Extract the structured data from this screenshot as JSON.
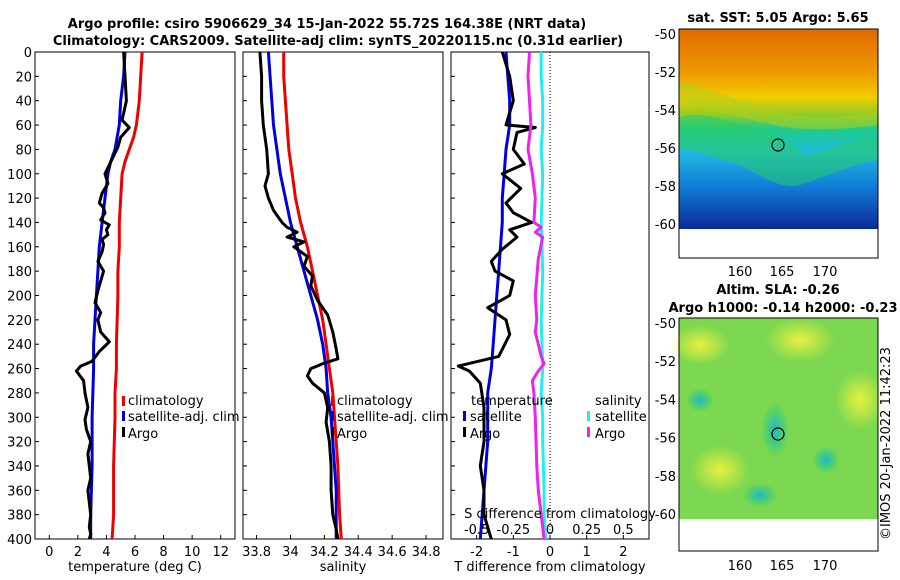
{
  "title": {
    "line1": "Argo profile: csiro 5906629_34 15-Jan-2022 55.72S 164.38E (NRT data)",
    "line2": "Climatology: CARS2009. Satellite-adj clim: synTS_20220115.nc (0.31d earlier)"
  },
  "chart_data": [
    {
      "type": "line",
      "id": "temperature",
      "xlabel": "temperature (deg C)",
      "ylabel": "",
      "xlim": [
        -1,
        13
      ],
      "ylim": [
        400,
        0
      ],
      "xticks": [
        "0",
        "2",
        "4",
        "6",
        "8",
        "10",
        "12"
      ],
      "yticks": [
        "0",
        "20",
        "40",
        "60",
        "80",
        "100",
        "120",
        "140",
        "160",
        "180",
        "200",
        "220",
        "240",
        "260",
        "280",
        "300",
        "320",
        "340",
        "360",
        "380",
        "400"
      ],
      "legend": [
        "climatology",
        "satellite-adj. clim",
        "Argo"
      ],
      "series": [
        {
          "name": "climatology",
          "color": "#ee0000",
          "x": [
            6.5,
            6.4,
            6.3,
            6.1,
            5.9,
            5.6,
            5.3,
            5.1,
            5.0,
            4.9,
            4.9,
            4.8,
            4.8,
            4.7,
            4.7,
            4.6,
            4.6,
            4.5,
            4.5,
            4.4
          ],
          "depth": [
            0,
            20,
            40,
            60,
            70,
            80,
            90,
            100,
            120,
            140,
            160,
            180,
            200,
            240,
            260,
            280,
            300,
            340,
            380,
            400
          ]
        },
        {
          "name": "satellite-adj. clim",
          "color": "#0000dd",
          "x": [
            5.3,
            5.2,
            5.0,
            4.9,
            4.6,
            4.3,
            4.1,
            3.9,
            3.7,
            3.5,
            3.4,
            3.3,
            3.2,
            3.1,
            3.1,
            3.0,
            3.0,
            2.9,
            2.9
          ],
          "depth": [
            0,
            20,
            40,
            60,
            80,
            90,
            100,
            120,
            140,
            160,
            180,
            200,
            220,
            240,
            260,
            300,
            340,
            380,
            400
          ]
        },
        {
          "name": "Argo",
          "color": "#000000",
          "x": [
            5.2,
            5.3,
            5.4,
            5.1,
            5.6,
            5.0,
            4.8,
            4.4,
            3.9,
            4.1,
            3.7,
            3.5,
            3.8,
            3.9,
            3.6,
            4.2,
            4.0,
            4.1,
            3.7,
            3.8,
            3.7,
            3.4,
            3.8,
            3.6,
            3.4,
            3.2,
            3.6,
            3.4,
            3.6,
            4.2,
            3.5,
            3.0,
            2.2,
            1.9,
            2.4,
            2.5,
            2.7,
            2.5,
            2.6,
            2.9,
            2.7,
            2.8,
            2.9,
            2.7,
            2.8,
            2.9,
            2.8,
            2.9,
            2.8
          ],
          "depth": [
            0,
            20,
            40,
            56,
            62,
            70,
            78,
            88,
            100,
            108,
            116,
            124,
            128,
            132,
            138,
            142,
            146,
            150,
            154,
            158,
            164,
            172,
            180,
            188,
            196,
            206,
            214,
            220,
            230,
            238,
            246,
            254,
            258,
            262,
            270,
            280,
            292,
            302,
            310,
            320,
            330,
            340,
            350,
            360,
            370,
            380,
            390,
            396,
            400
          ]
        }
      ]
    },
    {
      "type": "line",
      "id": "salinity",
      "xlabel": "salinity",
      "ylabel": "",
      "xlim": [
        33.72,
        34.9
      ],
      "ylim": [
        400,
        0
      ],
      "xticks": [
        "33.8",
        "34",
        "34.2",
        "34.4",
        "34.6",
        "34.8"
      ],
      "legend": [
        "climatology",
        "satellite-adj. clim",
        "Argo"
      ],
      "series": [
        {
          "name": "climatology",
          "color": "#ee0000",
          "x": [
            33.96,
            33.96,
            33.97,
            33.98,
            33.99,
            34.01,
            34.03,
            34.06,
            34.1,
            34.13,
            34.16,
            34.19,
            34.21,
            34.23,
            34.25,
            34.26,
            34.27,
            34.28,
            34.29,
            34.3
          ],
          "depth": [
            0,
            20,
            40,
            60,
            80,
            100,
            120,
            140,
            160,
            180,
            200,
            220,
            240,
            260,
            280,
            300,
            320,
            340,
            380,
            400
          ]
        },
        {
          "name": "satellite-adj. clim",
          "color": "#0000dd",
          "x": [
            33.87,
            33.88,
            33.89,
            33.9,
            33.92,
            33.94,
            33.97,
            34.0,
            34.04,
            34.08,
            34.12,
            34.16,
            34.19,
            34.21,
            34.22,
            34.24,
            34.25,
            34.27,
            34.27
          ],
          "depth": [
            0,
            20,
            40,
            60,
            80,
            100,
            120,
            140,
            160,
            180,
            200,
            220,
            240,
            260,
            280,
            300,
            320,
            360,
            400
          ]
        },
        {
          "name": "Argo",
          "color": "#000000",
          "x": [
            33.82,
            33.83,
            33.83,
            33.84,
            33.86,
            33.87,
            33.85,
            33.87,
            33.9,
            33.93,
            33.95,
            33.98,
            34.04,
            33.98,
            34.08,
            34.02,
            34.1,
            34.08,
            34.13,
            34.12,
            34.16,
            34.22,
            34.25,
            34.27,
            34.28,
            34.19,
            34.12,
            34.1,
            34.13,
            34.2,
            34.22,
            34.21,
            34.23,
            34.24,
            34.24,
            34.25,
            34.27,
            34.28
          ],
          "depth": [
            0,
            20,
            40,
            60,
            80,
            100,
            110,
            120,
            130,
            136,
            140,
            144,
            148,
            152,
            156,
            160,
            168,
            176,
            184,
            192,
            204,
            216,
            230,
            244,
            252,
            256,
            260,
            266,
            272,
            280,
            292,
            304,
            320,
            340,
            360,
            380,
            392,
            400
          ]
        }
      ]
    },
    {
      "type": "line",
      "id": "difference",
      "xlabel": "T difference from climatology",
      "xlabel_top": "S difference from climatology",
      "xlim": [
        -2.7,
        2.7
      ],
      "ylim": [
        400,
        0
      ],
      "xticks": [
        "-2",
        "-1",
        "0",
        "1",
        "2"
      ],
      "xticks_s": [
        "-0.5",
        "-0.25",
        "0",
        "0.25",
        "0.5"
      ],
      "legend_t_title": "temperature",
      "legend_t": [
        "satellite",
        "Argo"
      ],
      "legend_s_title": "salinity",
      "legend_s": [
        "satellite",
        "Argo"
      ],
      "series": [
        {
          "name": "T satellite",
          "color": "#0000dd",
          "x": [
            -1.2,
            -1.15,
            -1.1,
            -1.1,
            -1.2,
            -1.25,
            -1.3,
            -1.3,
            -1.35,
            -1.4,
            -1.45,
            -1.55,
            -1.6,
            -1.7,
            -1.7,
            -1.8,
            -1.9
          ],
          "depth": [
            0,
            20,
            40,
            60,
            80,
            100,
            120,
            140,
            160,
            180,
            200,
            240,
            260,
            280,
            320,
            360,
            400
          ]
        },
        {
          "name": "T Argo",
          "color": "#000000",
          "x": [
            -1.3,
            -1.1,
            -1.0,
            -1.2,
            -0.4,
            -0.9,
            -1.0,
            -0.7,
            -1.3,
            -0.8,
            -1.2,
            -1.0,
            -0.5,
            -1.1,
            -0.9,
            -1.3,
            -1.6,
            -1.5,
            -1.0,
            -1.1,
            -1.7,
            -1.2,
            -1.1,
            -1.4,
            -2.5,
            -2.2,
            -1.9,
            -1.8,
            -1.8,
            -1.9,
            -1.8,
            -1.8,
            -1.6
          ],
          "depth": [
            0,
            20,
            40,
            60,
            62,
            66,
            80,
            92,
            100,
            112,
            124,
            132,
            140,
            146,
            152,
            162,
            172,
            180,
            188,
            200,
            210,
            220,
            232,
            250,
            258,
            262,
            272,
            292,
            320,
            340,
            360,
            380,
            400
          ]
        },
        {
          "name": "S satellite",
          "color": "#22eeee",
          "x": [
            -0.06,
            -0.06,
            -0.05,
            -0.05,
            -0.06,
            -0.05,
            -0.06,
            -0.05,
            -0.06,
            -0.05,
            -0.06,
            -0.05,
            -0.05,
            -0.04,
            -0.04,
            -0.03
          ],
          "depth": [
            0,
            20,
            40,
            60,
            80,
            100,
            140,
            180,
            220,
            260,
            280,
            300,
            320,
            360,
            380,
            400
          ]
        },
        {
          "name": "S Argo",
          "color": "#ee22ee",
          "x": [
            -0.14,
            -0.15,
            -0.14,
            -0.13,
            -0.15,
            -0.12,
            -0.1,
            -0.11,
            -0.06,
            -0.1,
            -0.05,
            -0.08,
            -0.1,
            -0.09,
            -0.1,
            -0.08,
            -0.06,
            -0.04,
            -0.08,
            -0.12,
            -0.11,
            -0.1,
            -0.09,
            -0.08,
            -0.06,
            -0.04
          ],
          "depth": [
            0,
            20,
            40,
            60,
            80,
            100,
            120,
            140,
            144,
            148,
            152,
            170,
            200,
            220,
            230,
            240,
            250,
            256,
            262,
            270,
            280,
            300,
            340,
            360,
            380,
            400
          ]
        }
      ]
    }
  ],
  "maps": {
    "sst": {
      "title": "sat. SST: 5.05 Argo: 5.65",
      "yticks": [
        "-50",
        "-52",
        "-54",
        "-56",
        "-58",
        "-60"
      ],
      "xticks": [
        "160",
        "165",
        "170"
      ]
    },
    "sla": {
      "title_line1": "Altim. SLA: -0.26",
      "title_line2": "Argo h1000: -0.14 h2000: -0.23",
      "yticks": [
        "-50",
        "-52",
        "-54",
        "-56",
        "-58",
        "-60"
      ],
      "xticks": [
        "160",
        "165",
        "170"
      ]
    }
  },
  "watermark": "©IMOS 20-Jan-2022 11:42:23"
}
